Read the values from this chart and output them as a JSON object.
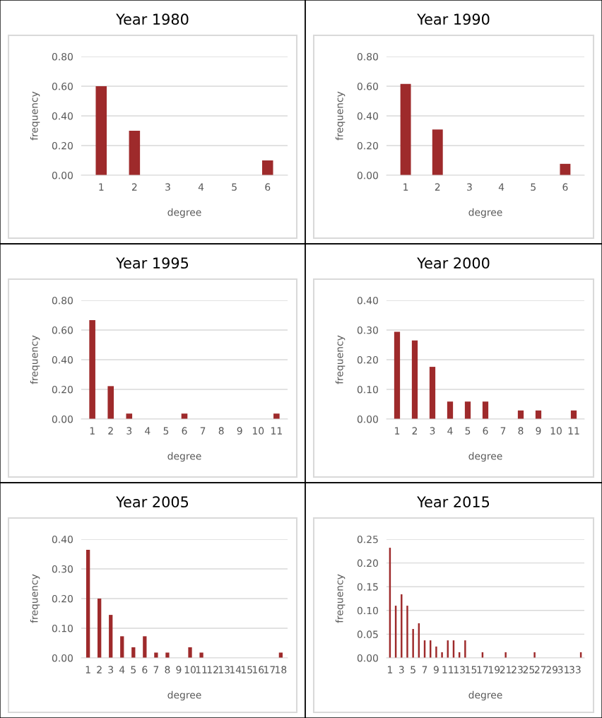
{
  "chart_data": [
    {
      "type": "bar",
      "title": "Year 1980",
      "xlabel": "degree",
      "ylabel": "frequency",
      "categories": [
        "1",
        "2",
        "3",
        "4",
        "5",
        "6"
      ],
      "values": [
        0.6,
        0.3,
        0,
        0,
        0,
        0.1
      ],
      "color": "#9e2a2b",
      "ylim": [
        0,
        0.8
      ],
      "yticks": [
        {
          "value": 0,
          "label": "0.00"
        },
        {
          "value": 0.2,
          "label": "0.20"
        },
        {
          "value": 0.4,
          "label": "0.40"
        },
        {
          "value": 0.6,
          "label": "0.60"
        },
        {
          "value": 0.8,
          "label": "0.80"
        }
      ],
      "grid": "y",
      "legend": false
    },
    {
      "type": "bar",
      "title": "Year 1990",
      "xlabel": "degree",
      "ylabel": "frequency",
      "categories": [
        "1",
        "2",
        "3",
        "4",
        "5",
        "6"
      ],
      "values": [
        0.615,
        0.308,
        0,
        0,
        0,
        0.077
      ],
      "color": "#9e2a2b",
      "ylim": [
        0,
        0.8
      ],
      "yticks": [
        {
          "value": 0,
          "label": "0.00"
        },
        {
          "value": 0.2,
          "label": "0.20"
        },
        {
          "value": 0.4,
          "label": "0.40"
        },
        {
          "value": 0.6,
          "label": "0.60"
        },
        {
          "value": 0.8,
          "label": "0.80"
        }
      ],
      "grid": "y",
      "legend": false
    },
    {
      "type": "bar",
      "title": "Year 1995",
      "xlabel": "degree",
      "ylabel": "frequency",
      "categories": [
        "1",
        "2",
        "3",
        "4",
        "5",
        "6",
        "7",
        "8",
        "9",
        "10",
        "11"
      ],
      "values": [
        0.667,
        0.222,
        0.037,
        0,
        0,
        0.037,
        0,
        0,
        0,
        0,
        0.037
      ],
      "color": "#9e2a2b",
      "ylim": [
        0,
        0.8
      ],
      "yticks": [
        {
          "value": 0,
          "label": "0.00"
        },
        {
          "value": 0.2,
          "label": "0.20"
        },
        {
          "value": 0.4,
          "label": "0.40"
        },
        {
          "value": 0.6,
          "label": "0.60"
        },
        {
          "value": 0.8,
          "label": "0.80"
        }
      ],
      "grid": "y",
      "legend": false
    },
    {
      "type": "bar",
      "title": "Year 2000",
      "xlabel": "degree",
      "ylabel": "frequency",
      "categories": [
        "1",
        "2",
        "3",
        "4",
        "5",
        "6",
        "7",
        "8",
        "9",
        "10",
        "11"
      ],
      "values": [
        0.294,
        0.265,
        0.176,
        0.059,
        0.059,
        0.059,
        0,
        0.029,
        0.029,
        0,
        0.029
      ],
      "color": "#9e2a2b",
      "ylim": [
        0,
        0.4
      ],
      "yticks": [
        {
          "value": 0,
          "label": "0.00"
        },
        {
          "value": 0.1,
          "label": "0.10"
        },
        {
          "value": 0.2,
          "label": "0.20"
        },
        {
          "value": 0.3,
          "label": "0.30"
        },
        {
          "value": 0.4,
          "label": "0.40"
        }
      ],
      "grid": "y",
      "legend": false
    },
    {
      "type": "bar",
      "title": "Year 2005",
      "xlabel": "degree",
      "ylabel": "frequency",
      "categories": [
        "1",
        "2",
        "3",
        "4",
        "5",
        "6",
        "7",
        "8",
        "9",
        "10",
        "11",
        "12",
        "13",
        "14",
        "15",
        "16",
        "17",
        "18"
      ],
      "values": [
        0.364,
        0.2,
        0.145,
        0.073,
        0.036,
        0.073,
        0.018,
        0.018,
        0,
        0.036,
        0.018,
        0,
        0,
        0,
        0,
        0,
        0,
        0.018
      ],
      "color": "#9e2a2b",
      "ylim": [
        0,
        0.4
      ],
      "yticks": [
        {
          "value": 0,
          "label": "0.00"
        },
        {
          "value": 0.1,
          "label": "0.10"
        },
        {
          "value": 0.2,
          "label": "0.20"
        },
        {
          "value": 0.3,
          "label": "0.30"
        },
        {
          "value": 0.4,
          "label": "0.40"
        }
      ],
      "grid": "y",
      "legend": false
    },
    {
      "type": "bar",
      "title": "Year 2015",
      "xlabel": "degree",
      "ylabel": "frequency",
      "categories": [
        "1",
        null,
        "3",
        null,
        "5",
        null,
        "7",
        null,
        "9",
        null,
        "11",
        null,
        "13",
        null,
        "15",
        null,
        "17",
        null,
        "19",
        null,
        "21",
        null,
        "23",
        null,
        "25",
        null,
        "27",
        null,
        "29",
        null,
        "31",
        null,
        "33",
        null
      ],
      "values": [
        0.232,
        0.11,
        0.134,
        0.11,
        0.061,
        0.073,
        0.037,
        0.037,
        0.024,
        0.012,
        0.037,
        0.037,
        0.012,
        0.037,
        0,
        0,
        0.012,
        0,
        0,
        0,
        0.012,
        0,
        0,
        0,
        0,
        0.012,
        0,
        0,
        0,
        0,
        0,
        0,
        0,
        0.012
      ],
      "color": "#9e2a2b",
      "ylim": [
        0,
        0.25
      ],
      "yticks": [
        {
          "value": 0,
          "label": "0.00"
        },
        {
          "value": 0.05,
          "label": "0.05"
        },
        {
          "value": 0.1,
          "label": "0.10"
        },
        {
          "value": 0.15,
          "label": "0.15"
        },
        {
          "value": 0.2,
          "label": "0.20"
        },
        {
          "value": 0.25,
          "label": "0.25"
        }
      ],
      "grid": "y",
      "legend": false
    }
  ]
}
